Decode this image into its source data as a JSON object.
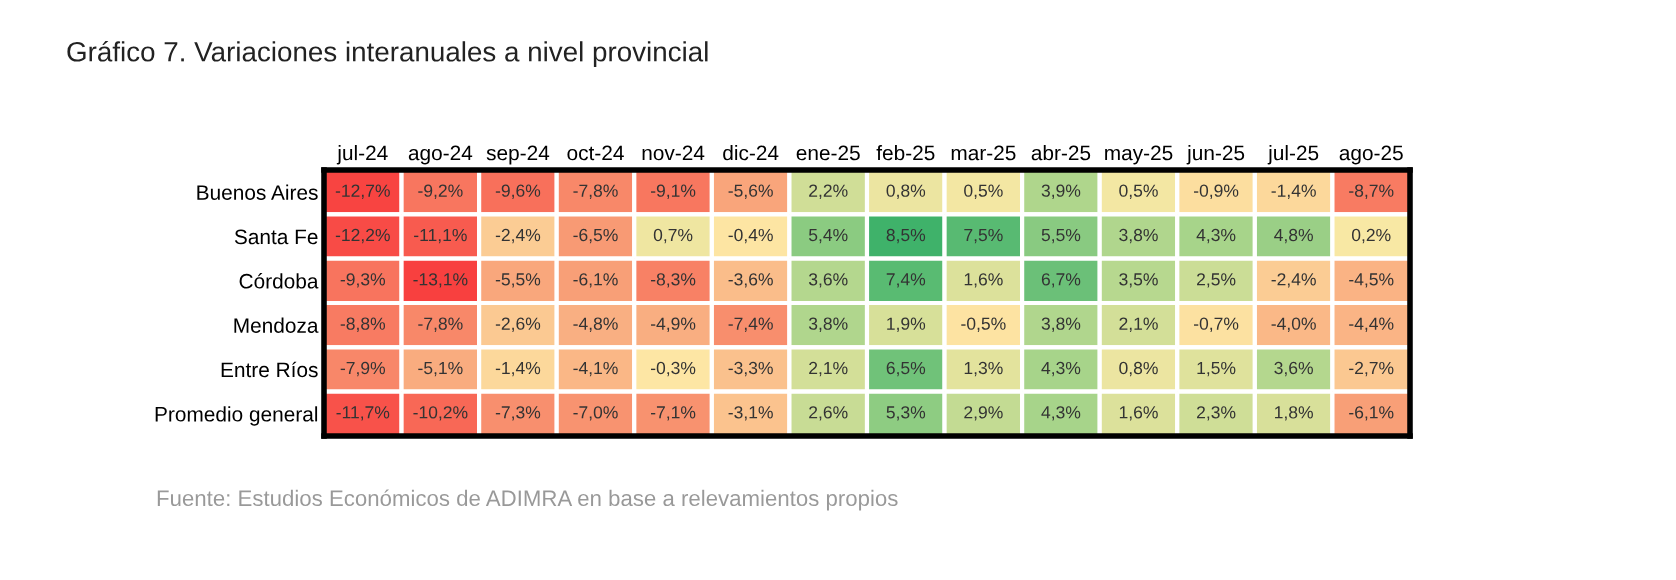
{
  "chart_data": {
    "type": "heatmap",
    "title": "Gráfico 7. Variaciones interanuales a nivel provincial",
    "categories": [
      "jul-24",
      "ago-24",
      "sep-24",
      "oct-24",
      "nov-24",
      "dic-24",
      "ene-25",
      "feb-25",
      "mar-25",
      "abr-25",
      "may-25",
      "jun-25",
      "jul-25",
      "ago-25"
    ],
    "y_categories": [
      "Buenos Aires",
      "Santa Fe",
      "Córdoba",
      "Mendoza",
      "Entre Ríos",
      "Promedio general"
    ],
    "cells": [
      [
        -12.7,
        -9.2,
        -9.6,
        -7.8,
        -9.1,
        -5.6,
        2.2,
        0.8,
        0.5,
        3.9,
        0.5,
        -0.9,
        -1.4,
        -8.7
      ],
      [
        -12.2,
        -11.1,
        -2.4,
        -6.5,
        0.7,
        -0.4,
        5.4,
        8.5,
        7.5,
        5.5,
        3.8,
        4.3,
        4.8,
        0.2
      ],
      [
        -9.3,
        -13.1,
        -5.5,
        -6.1,
        -8.3,
        -3.6,
        3.6,
        7.4,
        1.6,
        6.7,
        3.5,
        2.5,
        -2.4,
        -4.5
      ],
      [
        -8.8,
        -7.8,
        -2.6,
        -4.8,
        -4.9,
        -7.4,
        3.8,
        1.9,
        -0.5,
        3.8,
        2.1,
        -0.7,
        -4.0,
        -4.4
      ],
      [
        -7.9,
        -5.1,
        -1.4,
        -4.1,
        -0.3,
        -3.3,
        2.1,
        6.5,
        1.3,
        4.3,
        0.8,
        1.5,
        3.6,
        -2.7
      ],
      [
        -11.7,
        -10.2,
        -7.3,
        -7.0,
        -7.1,
        -3.1,
        2.6,
        5.3,
        2.9,
        4.3,
        1.6,
        2.3,
        1.8,
        -6.1
      ]
    ],
    "cell_labels": [
      [
        "-12,7%",
        "-9,2%",
        "-9,6%",
        "-7,8%",
        "-9,1%",
        "-5,6%",
        "2,2%",
        "0,8%",
        "0,5%",
        "3,9%",
        "0,5%",
        "-0,9%",
        "-1,4%",
        "-8,7%"
      ],
      [
        "-12,2%",
        "-11,1%",
        "-2,4%",
        "-6,5%",
        "0,7%",
        "-0,4%",
        "5,4%",
        "8,5%",
        "7,5%",
        "5,5%",
        "3,8%",
        "4,3%",
        "4,8%",
        "0,2%"
      ],
      [
        "-9,3%",
        "-13,1%",
        "-5,5%",
        "-6,1%",
        "-8,3%",
        "-3,6%",
        "3,6%",
        "7,4%",
        "1,6%",
        "6,7%",
        "3,5%",
        "2,5%",
        "-2,4%",
        "-4,5%"
      ],
      [
        "-8,8%",
        "-7,8%",
        "-2,6%",
        "-4,8%",
        "-4,9%",
        "-7,4%",
        "3,8%",
        "1,9%",
        "-0,5%",
        "3,8%",
        "2,1%",
        "-0,7%",
        "-4,0%",
        "-4,4%"
      ],
      [
        "-7,9%",
        "-5,1%",
        "-1,4%",
        "-4,1%",
        "-0,3%",
        "-3,3%",
        "2,1%",
        "6,5%",
        "1,3%",
        "4,3%",
        "0,8%",
        "1,5%",
        "3,6%",
        "-2,7%"
      ],
      [
        "-11,7%",
        "-10,2%",
        "-7,3%",
        "-7,0%",
        "-7,1%",
        "-3,1%",
        "2,6%",
        "5,3%",
        "2,9%",
        "4,3%",
        "1,6%",
        "2,3%",
        "1,8%",
        "-6,1%"
      ]
    ],
    "annotations": [
      "Fuente: Estudios Económicos de ADIMRA en base a relevamientos propios"
    ]
  }
}
